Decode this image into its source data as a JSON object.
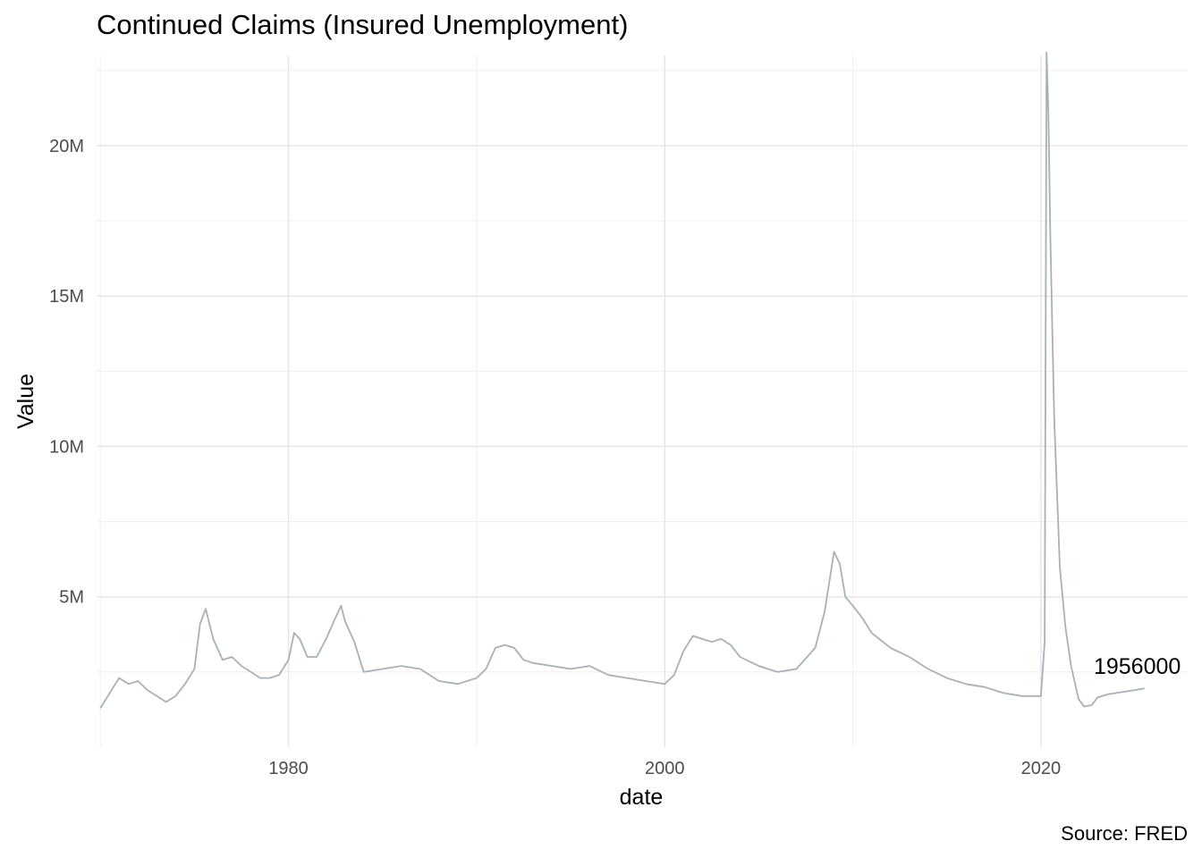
{
  "chart_data": {
    "type": "line",
    "title": "Continued Claims (Insured Unemployment)",
    "xlabel": "date",
    "ylabel": "Value",
    "caption": "Source: FRED",
    "xlim": [
      1969.8,
      2027.8
    ],
    "ylim": [
      0,
      23000000
    ],
    "x_ticks": [
      {
        "value": 1980,
        "label": "1980"
      },
      {
        "value": 2000,
        "label": "2000"
      },
      {
        "value": 2020,
        "label": "2020"
      }
    ],
    "y_ticks": [
      {
        "value": 5000000,
        "label": "5M"
      },
      {
        "value": 10000000,
        "label": "10M"
      },
      {
        "value": 15000000,
        "label": "15M"
      },
      {
        "value": 20000000,
        "label": "20M"
      }
    ],
    "grid": true,
    "series_color": "#a9b0b8",
    "series": [
      {
        "x": [
          1970.0,
          1970.5,
          1971.0,
          1971.5,
          1972.0,
          1972.5,
          1973.0,
          1973.5,
          1974.0,
          1974.5,
          1975.0,
          1975.3,
          1975.6,
          1976.0,
          1976.5,
          1977.0,
          1977.5,
          1978.0,
          1978.5,
          1979.0,
          1979.5,
          1980.0,
          1980.3,
          1980.6,
          1981.0,
          1981.5,
          1982.0,
          1982.5,
          1982.8,
          1983.0,
          1983.5,
          1984.0,
          1985.0,
          1986.0,
          1987.0,
          1988.0,
          1989.0,
          1990.0,
          1990.5,
          1991.0,
          1991.5,
          1992.0,
          1992.5,
          1993.0,
          1994.0,
          1995.0,
          1996.0,
          1997.0,
          1998.0,
          1999.0,
          2000.0,
          2000.5,
          2001.0,
          2001.5,
          2002.0,
          2002.5,
          2003.0,
          2003.5,
          2004.0,
          2005.0,
          2006.0,
          2007.0,
          2008.0,
          2008.5,
          2009.0,
          2009.3,
          2009.6,
          2010.0,
          2010.5,
          2011.0,
          2012.0,
          2013.0,
          2014.0,
          2015.0,
          2016.0,
          2017.0,
          2018.0,
          2019.0,
          2019.5,
          2020.0,
          2020.2,
          2020.3,
          2020.4,
          2020.5,
          2020.7,
          2021.0,
          2021.3,
          2021.6,
          2022.0,
          2022.3,
          2022.7,
          2023.0,
          2023.5,
          2024.0,
          2024.5,
          2025.0,
          2025.5
        ],
        "y": [
          1300000,
          1800000,
          2300000,
          2100000,
          2200000,
          1900000,
          1700000,
          1500000,
          1700000,
          2100000,
          2600000,
          4100000,
          4600000,
          3600000,
          2900000,
          3000000,
          2700000,
          2500000,
          2300000,
          2300000,
          2400000,
          2900000,
          3800000,
          3600000,
          3000000,
          3000000,
          3600000,
          4300000,
          4700000,
          4200000,
          3500000,
          2500000,
          2600000,
          2700000,
          2600000,
          2200000,
          2100000,
          2300000,
          2600000,
          3300000,
          3400000,
          3300000,
          2900000,
          2800000,
          2700000,
          2600000,
          2700000,
          2400000,
          2300000,
          2200000,
          2100000,
          2400000,
          3200000,
          3700000,
          3600000,
          3500000,
          3600000,
          3400000,
          3000000,
          2700000,
          2500000,
          2600000,
          3300000,
          4500000,
          6500000,
          6100000,
          5000000,
          4700000,
          4300000,
          3800000,
          3300000,
          3000000,
          2600000,
          2300000,
          2100000,
          2000000,
          1800000,
          1700000,
          1700000,
          1700000,
          3500000,
          23100000,
          21000000,
          17000000,
          11000000,
          6000000,
          4000000,
          2700000,
          1600000,
          1350000,
          1400000,
          1650000,
          1750000,
          1800000,
          1850000,
          1900000,
          1956000
        ]
      }
    ],
    "annotation": {
      "x": 2025.5,
      "y": 1956000,
      "text": "1956000"
    }
  }
}
